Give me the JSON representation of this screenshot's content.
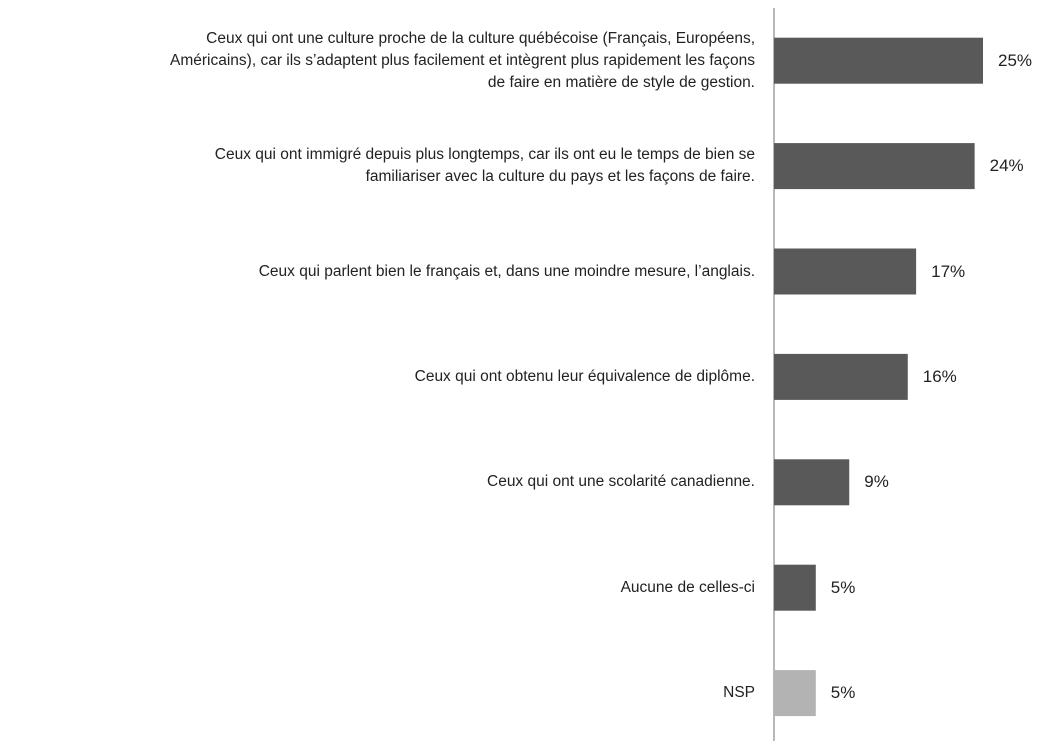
{
  "chart_data": {
    "type": "barh",
    "categories": [
      "Ceux qui ont une culture proche de la culture québécoise (Français, Européens,\nAméricains), car ils s’adaptent plus facilement et intègrent plus rapidement les façons\nde faire en matière de style de gestion.",
      "Ceux qui ont immigré depuis plus longtemps, car ils ont eu le temps de bien se\nfamiliariser avec la culture du pays et les façons de faire.",
      "Ceux qui parlent bien le français et, dans une moindre mesure, l’anglais.",
      "Ceux qui ont obtenu leur équivalence de diplôme.",
      "Ceux qui ont une scolarité canadienne.",
      "Aucune de celles-ci",
      "NSP"
    ],
    "values": [
      25,
      24,
      17,
      16,
      9,
      5,
      5
    ],
    "value_labels": [
      "25%",
      "24%",
      "17%",
      "16%",
      "9%",
      "5%",
      "5%"
    ],
    "colors": [
      "#595959",
      "#595959",
      "#595959",
      "#595959",
      "#595959",
      "#595959",
      "#b3b3b3"
    ]
  }
}
